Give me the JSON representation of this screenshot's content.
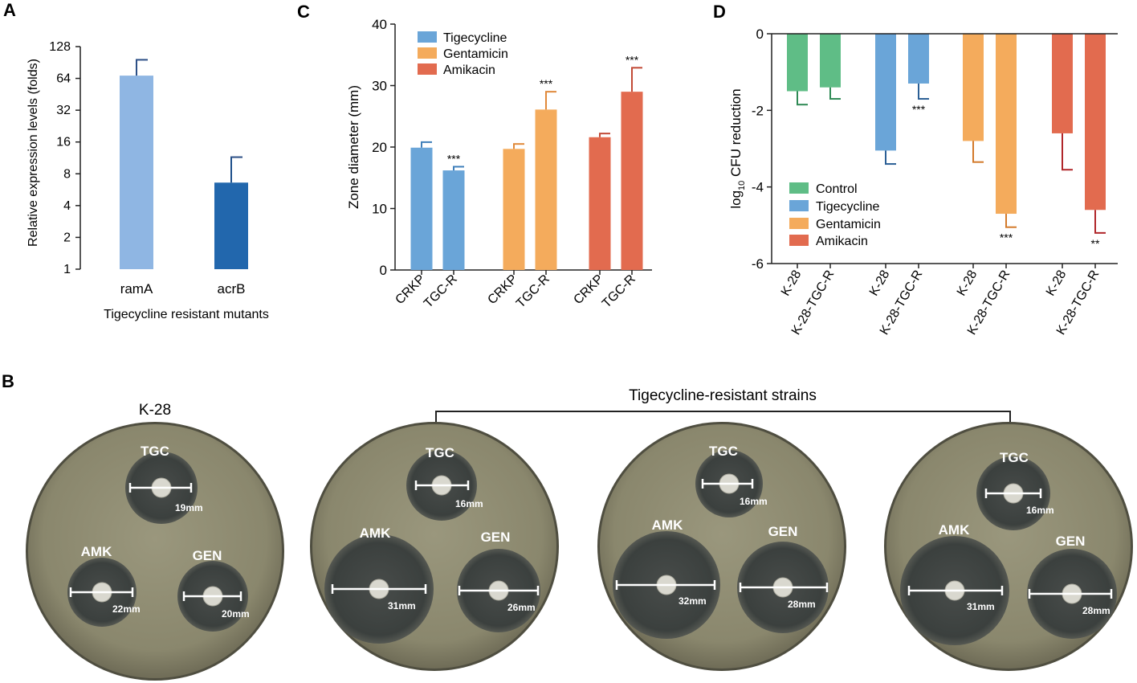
{
  "colors": {
    "ramA": "#8fb6e3",
    "acrB": "#2267ad",
    "tigecycline": "#6aa5d8",
    "gentamicin": "#f4ab5c",
    "amikacin": "#e26b4f",
    "control": "#5fbd86",
    "plate_agar": "#8d8b72",
    "zone": "#3f4442"
  },
  "panels": {
    "A": {
      "letter": "A"
    },
    "B": {
      "letter": "B"
    },
    "C": {
      "letter": "C"
    },
    "D": {
      "letter": "D"
    }
  },
  "chart_data": [
    {
      "id": "A",
      "type": "bar",
      "yscale": "log2",
      "title": "",
      "ylabel": "Relative expression levels (folds)",
      "xlabel": "Tigecycline resistant mutants",
      "ylim": [
        1,
        128
      ],
      "yticks": [
        1,
        2,
        4,
        8,
        16,
        32,
        64,
        128
      ],
      "yticklabels": [
        "1",
        "2",
        "4",
        "8",
        "16",
        "32",
        "64",
        "128"
      ],
      "categories": [
        "ramA",
        "acrB"
      ],
      "values": [
        68,
        6.6
      ],
      "errors_upper": [
        96,
        11.5
      ]
    },
    {
      "id": "C",
      "type": "bar",
      "ylabel": "Zone diameter (mm)",
      "ylim": [
        0,
        40
      ],
      "yticks": [
        0,
        10,
        20,
        30,
        40
      ],
      "yticklabels": [
        "0",
        "10",
        "20",
        "30",
        "40"
      ],
      "categories": [
        "CRKP",
        "TGC-R",
        "CRKP",
        "TGC-R",
        "CRKP",
        "TGC-R"
      ],
      "groups": [
        "Tigecycline",
        "Tigecycline",
        "Gentamicin",
        "Gentamicin",
        "Amikacin",
        "Amikacin"
      ],
      "values": [
        19.9,
        16.2,
        19.7,
        26.1,
        21.6,
        29.0
      ],
      "errors": [
        0.9,
        0.6,
        0.8,
        2.9,
        0.6,
        3.9
      ],
      "annotations": [
        "",
        "***",
        "",
        "***",
        "",
        "***"
      ],
      "legend": [
        "Tigecycline",
        "Gentamicin",
        "Amikacin"
      ],
      "legend_position": "top-left"
    },
    {
      "id": "D",
      "type": "bar",
      "ylabel_main": "log",
      "ylabel_sub": "10",
      "ylabel_rest": " CFU reduction",
      "ylim": [
        -6,
        0
      ],
      "yticks": [
        0,
        -2,
        -4,
        -6
      ],
      "yticklabels": [
        "0",
        "-2",
        "-4",
        "-6"
      ],
      "categories": [
        "K-28",
        "K-28-TGC-R",
        "K-28",
        "K-28-TGC-R",
        "K-28",
        "K-28-TGC-R",
        "K-28",
        "K-28-TGC-R"
      ],
      "groups": [
        "Control",
        "Control",
        "Tigecycline",
        "Tigecycline",
        "Gentamicin",
        "Gentamicin",
        "Amikacin",
        "Amikacin"
      ],
      "values": [
        -1.5,
        -1.4,
        -3.05,
        -1.3,
        -2.8,
        -4.7,
        -2.6,
        -4.6
      ],
      "errors": [
        0.35,
        0.3,
        0.35,
        0.4,
        0.55,
        0.35,
        0.95,
        0.6
      ],
      "annotations": [
        "",
        "",
        "",
        "***",
        "",
        "***",
        "",
        "**"
      ],
      "legend": [
        "Control",
        "Tigecycline",
        "Gentamicin",
        "Amikacin"
      ],
      "legend_position": "lower-left"
    }
  ],
  "panel_B": {
    "k28_label": "K-28",
    "resistant_label": "Tigecycline-resistant strains",
    "plates": [
      {
        "zones": [
          {
            "label": "TGC",
            "measure": "19mm"
          },
          {
            "label": "AMK",
            "measure": "22mm"
          },
          {
            "label": "GEN",
            "measure": "20mm"
          }
        ]
      },
      {
        "zones": [
          {
            "label": "TGC",
            "measure": "16mm"
          },
          {
            "label": "AMK",
            "measure": "31mm"
          },
          {
            "label": "GEN",
            "measure": "26mm"
          }
        ]
      },
      {
        "zones": [
          {
            "label": "TGC",
            "measure": "16mm"
          },
          {
            "label": "AMK",
            "measure": "32mm"
          },
          {
            "label": "GEN",
            "measure": "28mm"
          }
        ]
      },
      {
        "zones": [
          {
            "label": "TGC",
            "measure": "16mm"
          },
          {
            "label": "AMK",
            "measure": "31mm"
          },
          {
            "label": "GEN",
            "measure": "28mm"
          }
        ]
      }
    ]
  }
}
